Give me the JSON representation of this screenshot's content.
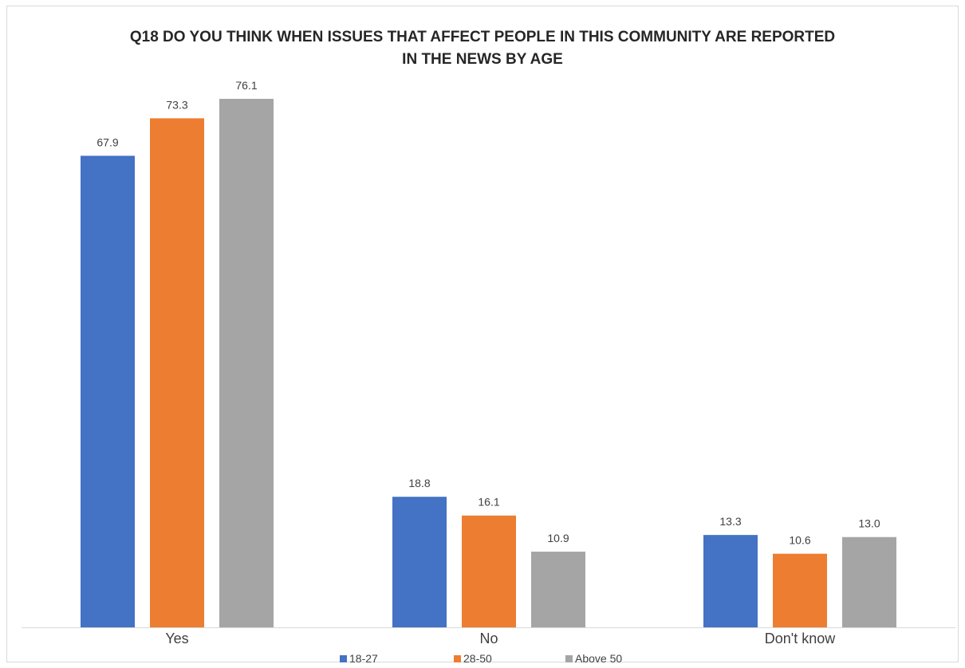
{
  "chart_data": {
    "type": "bar",
    "title": "Q18 DO YOU THINK WHEN ISSUES THAT AFFECT PEOPLE IN THIS COMMUNITY ARE REPORTED\nIN THE NEWS BY AGE",
    "categories": [
      "Yes",
      "No",
      "Don't know"
    ],
    "series": [
      {
        "name": "18-27",
        "color": "#4472c4",
        "values": [
          67.9,
          18.8,
          13.3
        ],
        "labels": [
          "67.9",
          "18.8",
          "13.3"
        ]
      },
      {
        "name": "28-50",
        "color": "#ed7d31",
        "values": [
          73.3,
          16.1,
          10.6
        ],
        "labels": [
          "73.3",
          "16.1",
          "10.6"
        ]
      },
      {
        "name": "Above 50",
        "color": "#a5a5a5",
        "values": [
          76.1,
          10.9,
          13.0
        ],
        "labels": [
          "76.1",
          "10.9",
          "13.0"
        ]
      }
    ],
    "ylim": [
      0,
      80
    ],
    "grid": false,
    "legend_position": "bottom",
    "xlabel": "",
    "ylabel": ""
  }
}
